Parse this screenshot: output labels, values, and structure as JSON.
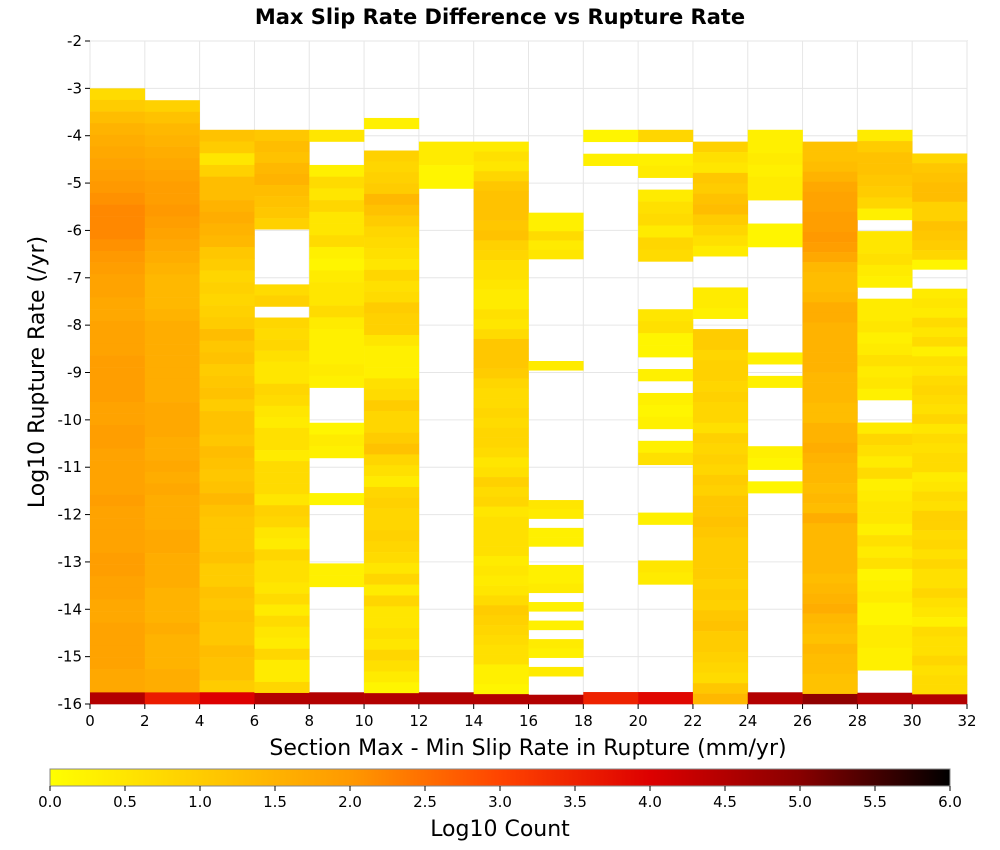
{
  "chart_data": {
    "type": "heatmap",
    "title": "Max Slip Rate Difference vs Rupture Rate",
    "xlabel": "Section Max - Min Slip Rate in Rupture (mm/yr)",
    "ylabel": "Log10 Rupture Rate (/yr)",
    "colorbar_label": "Log10 Count",
    "xlim": [
      0,
      32
    ],
    "ylim": [
      -16,
      -2
    ],
    "x_ticks": [
      0,
      2,
      4,
      6,
      8,
      10,
      12,
      14,
      16,
      18,
      20,
      22,
      24,
      26,
      28,
      30,
      32
    ],
    "y_ticks": [
      -2,
      -3,
      -4,
      -5,
      -6,
      -7,
      -8,
      -9,
      -10,
      -11,
      -12,
      -13,
      -14,
      -15,
      -16
    ],
    "colorbar_range": [
      0,
      6
    ],
    "colorbar_ticks": [
      "0.0",
      "0.5",
      "1.0",
      "1.5",
      "2.0",
      "2.5",
      "3.0",
      "3.5",
      "4.0",
      "4.5",
      "5.0",
      "5.5",
      "6.0"
    ],
    "grid": true,
    "colormap": [
      "#ffff00",
      "#ffcc00",
      "#ff9900",
      "#ff4400",
      "#dd0000",
      "#880000",
      "#000000"
    ],
    "x_bin_width": 2,
    "y_bin_height": 0.25,
    "x_bin_starts": [
      0,
      2,
      4,
      6,
      8,
      10,
      12,
      14,
      16,
      18,
      20,
      22,
      24,
      26,
      28,
      30
    ],
    "column_counts_log10": [
      [
        -3.0,
        -16.0,
        [
          0.7,
          1.0,
          1.3,
          1.5,
          1.6,
          1.7,
          1.8,
          1.9,
          2.0,
          2.1,
          2.2,
          2.2,
          2.2,
          2.1,
          2.0,
          1.9,
          1.8,
          1.8,
          1.7,
          1.7,
          1.8,
          1.8,
          1.8,
          1.9,
          1.9,
          1.9,
          1.9,
          1.8,
          1.8,
          1.9,
          1.9,
          1.8,
          1.8,
          1.8,
          1.8,
          1.9,
          1.8,
          1.8,
          1.8,
          1.8,
          1.9,
          1.9,
          1.8,
          1.8,
          1.7,
          1.7,
          1.8,
          1.8,
          1.8,
          1.8,
          1.7,
          1.7,
          4.5
        ]
      ],
      [
        -3.25,
        -16.0,
        [
          0.9,
          1.2,
          1.4,
          1.5,
          1.6,
          1.7,
          1.8,
          1.9,
          1.9,
          2.0,
          1.9,
          1.8,
          1.7,
          1.6,
          1.5,
          1.4,
          1.4,
          1.4,
          1.5,
          1.6,
          1.6,
          1.6,
          1.6,
          1.6,
          1.6,
          1.6,
          1.7,
          1.7,
          1.7,
          1.6,
          1.6,
          1.7,
          1.6,
          1.7,
          1.6,
          1.6,
          1.6,
          1.7,
          1.7,
          1.6,
          1.6,
          1.6,
          1.5,
          1.5,
          1.5,
          1.6,
          1.5,
          1.5,
          1.5,
          1.6,
          1.6,
          3.6
        ]
      ],
      [
        -3.875,
        -16.0,
        [
          1.2,
          1.0,
          0.5,
          0.9,
          1.3,
          1.3,
          1.5,
          1.6,
          1.5,
          1.4,
          1.1,
          1.0,
          0.8,
          0.9,
          0.8,
          0.9,
          1.0,
          1.3,
          1.1,
          1.2,
          1.0,
          1.1,
          1.2,
          1.0,
          1.2,
          1.2,
          1.1,
          1.3,
          1.2,
          1.1,
          1.2,
          1.4,
          1.2,
          1.1,
          1.1,
          1.1,
          1.2,
          1.0,
          1.0,
          1.2,
          1.1,
          1.2,
          1.1,
          1.1,
          1.3,
          1.2,
          1.2,
          1.0,
          4.0
        ]
      ],
      [
        -3.875,
        -16.0,
        [
          1.1,
          1.3,
          1.2,
          1.4,
          1.5,
          1.3,
          1.2,
          1.1,
          0.9,
          null,
          null,
          null,
          null,
          null,
          0.7,
          0.9,
          null,
          0.8,
          0.7,
          0.8,
          0.6,
          0.5,
          0.5,
          0.8,
          0.7,
          0.5,
          0.4,
          0.6,
          0.6,
          0.4,
          0.7,
          0.7,
          0.7,
          0.5,
          0.9,
          0.8,
          0.5,
          0.4,
          0.8,
          0.6,
          0.6,
          0.5,
          0.7,
          0.4,
          0.7,
          0.5,
          0.4,
          0.8,
          0.4,
          0.4,
          0.8,
          4.5
        ]
      ],
      [
        -3.875,
        -16.0,
        [
          0.5,
          null,
          null,
          0.3,
          0.7,
          0.5,
          0.8,
          0.5,
          0.5,
          0.7,
          0.3,
          0.2,
          0.4,
          0.5,
          0.5,
          0.7,
          0.4,
          0.3,
          0.3,
          0.3,
          0.4,
          0.3,
          null,
          null,
          null,
          0.2,
          0.4,
          0.3,
          null,
          null,
          null,
          0.2,
          null,
          null,
          null,
          null,
          null,
          0.3,
          0.3,
          null,
          null,
          null,
          null,
          null,
          null,
          null,
          null,
          null,
          4.5
        ]
      ],
      [
        -3.625,
        -16.0,
        [
          0.3,
          null,
          null,
          0.9,
          0.8,
          0.9,
          1.0,
          1.4,
          1.2,
          1.0,
          0.8,
          0.7,
          0.6,
          0.5,
          0.8,
          0.6,
          0.7,
          1.0,
          0.9,
          0.9,
          0.5,
          0.3,
          0.3,
          0.3,
          0.6,
          0.7,
          1.0,
          0.8,
          0.8,
          1.0,
          1.2,
          0.8,
          0.6,
          0.4,
          0.8,
          0.9,
          0.8,
          0.8,
          0.9,
          0.8,
          0.7,
          0.5,
          0.8,
          0.4,
          0.8,
          0.5,
          0.5,
          0.6,
          0.5,
          0.8,
          0.6,
          0.4,
          0.2,
          4.5
        ]
      ],
      [
        -4.125,
        -16.0,
        [
          0.4,
          0.4,
          0.2,
          0.2,
          null,
          null,
          null,
          null,
          null,
          null,
          null,
          null,
          null,
          null,
          null,
          null,
          null,
          null,
          null,
          null,
          null,
          null,
          null,
          null,
          null,
          null,
          null,
          null,
          null,
          null,
          null,
          null,
          null,
          null,
          null,
          null,
          null,
          null,
          null,
          null,
          null,
          null,
          null,
          null,
          null,
          null,
          null,
          4.5
        ]
      ],
      [
        -4.125,
        -16.0,
        [
          0.4,
          0.6,
          0.5,
          0.8,
          1.1,
          1.2,
          1.2,
          1.2,
          1.1,
          1.2,
          0.9,
          0.8,
          0.6,
          0.6,
          0.5,
          0.4,
          0.4,
          0.6,
          0.5,
          0.7,
          1.1,
          1.1,
          1.1,
          1.0,
          0.8,
          0.7,
          0.7,
          0.8,
          0.7,
          0.8,
          0.8,
          0.7,
          0.5,
          0.6,
          0.9,
          0.7,
          0.8,
          0.5,
          0.6,
          0.6,
          0.6,
          0.6,
          0.4,
          0.5,
          0.4,
          0.5,
          0.7,
          1.0,
          0.9,
          0.8,
          0.7,
          0.6,
          0.6,
          0.3,
          0.3,
          0.2,
          4.5
        ]
      ],
      [
        -5.625,
        -16.0,
        [
          0.3,
          0.3,
          0.7,
          0.4,
          0.5,
          null,
          null,
          null,
          null,
          null,
          null,
          null,
          null,
          null,
          null,
          null,
          0.4,
          null,
          null,
          null,
          null,
          null,
          null,
          null,
          null,
          null,
          null,
          null,
          null,
          null,
          null,
          0.5,
          0.4,
          null,
          0.3,
          0.3,
          null,
          null,
          0.3,
          0.3,
          0.4,
          null,
          0.3,
          null,
          0.3,
          null,
          0.4,
          0.3,
          null,
          0.4,
          null,
          null,
          4.5
        ]
      ],
      [
        -3.875,
        -16.0,
        [
          0.2,
          null,
          0.3,
          null,
          null,
          null,
          null,
          null,
          null,
          null,
          null,
          null,
          null,
          null,
          null,
          null,
          null,
          null,
          null,
          null,
          null,
          null,
          null,
          null,
          null,
          null,
          null,
          null,
          null,
          null,
          null,
          null,
          null,
          null,
          null,
          null,
          null,
          null,
          null,
          null,
          null,
          null,
          null,
          null,
          null,
          null,
          null,
          3.5
        ]
      ],
      [
        -3.875,
        -16.0,
        [
          0.8,
          null,
          0.3,
          0.4,
          null,
          0.4,
          0.6,
          0.7,
          0.4,
          0.8,
          0.7,
          null,
          null,
          null,
          null,
          0.5,
          0.6,
          0.2,
          0.2,
          null,
          0.3,
          null,
          0.3,
          0.2,
          0.3,
          null,
          0.3,
          0.6,
          null,
          null,
          null,
          null,
          0.3,
          null,
          null,
          null,
          0.5,
          0.4,
          null,
          null,
          null,
          null,
          null,
          null,
          null,
          null,
          null,
          3.9
        ]
      ],
      [
        -4.125,
        -16.0,
        [
          0.9,
          0.6,
          0.5,
          1.1,
          1.0,
          1.2,
          1.3,
          1.0,
          0.8,
          0.6,
          0.4,
          null,
          null,
          null,
          0.4,
          0.4,
          0.3,
          null,
          1.0,
          1.0,
          0.8,
          0.9,
          0.9,
          0.8,
          0.9,
          0.8,
          0.8,
          0.6,
          0.9,
          0.8,
          0.9,
          0.8,
          1.0,
          0.9,
          1.1,
          1.1,
          1.2,
          1.1,
          1.0,
          1.0,
          1.0,
          1.0,
          0.9,
          1.0,
          0.9,
          1.1,
          1.2,
          1.0,
          1.0,
          0.9,
          0.8,
          0.7,
          1.1,
          1.4
        ]
      ],
      [
        -3.875,
        -16.0,
        [
          0.3,
          0.3,
          0.4,
          0.3,
          0.4,
          0.4,
          null,
          null,
          0.2,
          0.2,
          null,
          null,
          null,
          null,
          null,
          null,
          null,
          null,
          null,
          0.3,
          null,
          0.3,
          null,
          null,
          null,
          null,
          null,
          0.3,
          0.2,
          null,
          0.2,
          null,
          null,
          null,
          null,
          null,
          null,
          null,
          null,
          null,
          null,
          null,
          null,
          null,
          null,
          null,
          null,
          null,
          4.5
        ]
      ],
      [
        -4.125,
        -16.0,
        [
          1.2,
          1.2,
          1.3,
          1.5,
          1.7,
          1.8,
          1.8,
          1.9,
          1.9,
          2.0,
          1.9,
          1.7,
          1.4,
          1.3,
          1.3,
          1.4,
          1.6,
          1.6,
          1.5,
          1.5,
          1.5,
          1.5,
          1.5,
          1.4,
          1.4,
          1.4,
          1.3,
          1.3,
          1.5,
          1.5,
          1.6,
          1.5,
          1.4,
          1.4,
          1.3,
          1.4,
          1.3,
          1.6,
          1.4,
          1.4,
          1.4,
          1.4,
          1.4,
          1.3,
          1.4,
          1.5,
          1.6,
          1.4,
          1.3,
          1.2,
          1.4,
          1.3,
          1.3,
          1.2,
          1.2,
          4.9
        ]
      ],
      [
        -3.875,
        -16.0,
        [
          0.4,
          1.0,
          1.2,
          1.2,
          1.1,
          1.0,
          0.8,
          0.3,
          null,
          0.5,
          0.5,
          0.6,
          0.4,
          0.3,
          null,
          0.4,
          0.4,
          0.5,
          0.3,
          0.4,
          0.6,
          0.4,
          0.5,
          0.3,
          null,
          null,
          0.4,
          0.8,
          0.6,
          0.4,
          0.7,
          0.3,
          0.4,
          0.5,
          0.5,
          0.3,
          0.6,
          0.4,
          0.6,
          0.2,
          0.3,
          0.4,
          0.2,
          0.2,
          0.4,
          0.4,
          0.3,
          0.3,
          null,
          null,
          4.5
        ]
      ],
      [
        -4.375,
        -16.0,
        [
          0.8,
          1.1,
          1.2,
          1.3,
          1.3,
          0.9,
          0.9,
          1.2,
          1.1,
          1.0,
          0.8,
          0.2,
          null,
          null,
          0.4,
          0.5,
          0.4,
          0.7,
          0.5,
          0.7,
          0.3,
          0.6,
          0.5,
          0.7,
          0.8,
          0.7,
          0.6,
          0.8,
          0.5,
          0.7,
          0.6,
          0.7,
          0.7,
          0.4,
          0.5,
          0.7,
          0.6,
          0.9,
          0.9,
          0.7,
          0.8,
          0.6,
          0.8,
          0.6,
          0.6,
          0.8,
          0.6,
          0.5,
          0.3,
          0.7,
          0.6,
          0.6,
          0.8,
          0.6,
          0.7,
          0.7,
          4.5
        ]
      ]
    ]
  }
}
